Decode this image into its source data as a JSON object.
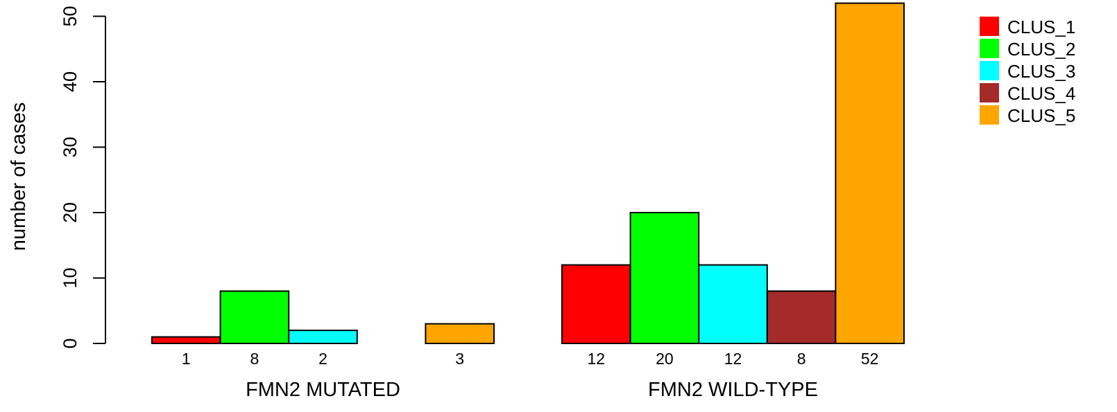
{
  "chart_data": {
    "type": "bar",
    "ylabel": "number of cases",
    "ylim": [
      0,
      52
    ],
    "yticks": [
      0,
      10,
      20,
      30,
      40,
      50
    ],
    "groups": [
      "FMN2 MUTATED",
      "FMN2 WILD-TYPE"
    ],
    "series": [
      {
        "name": "CLUS_1",
        "color": "#ff0000",
        "values": [
          1,
          12
        ]
      },
      {
        "name": "CLUS_2",
        "color": "#00ff00",
        "values": [
          8,
          20
        ]
      },
      {
        "name": "CLUS_3",
        "color": "#00ffff",
        "values": [
          2,
          12
        ]
      },
      {
        "name": "CLUS_4",
        "color": "#a52a2a",
        "values": [
          0,
          8
        ]
      },
      {
        "name": "CLUS_5",
        "color": "#ffa500",
        "values": [
          3,
          52
        ]
      }
    ],
    "bar_value_labels": [
      [
        "1",
        "8",
        "2",
        "",
        "3"
      ],
      [
        "12",
        "20",
        "12",
        "8",
        "52"
      ]
    ],
    "grid": false,
    "legend_position": "top-right"
  }
}
